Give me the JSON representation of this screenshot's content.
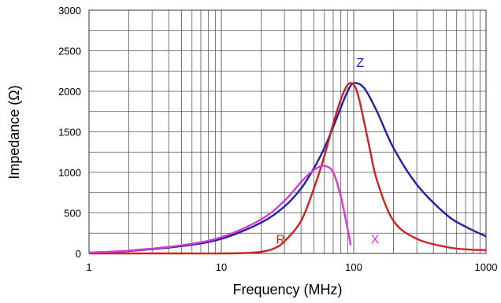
{
  "chart_data": {
    "type": "line",
    "xlabel": "Frequency (MHz)",
    "ylabel": "Impedance (Ω)",
    "x_scale": "log",
    "xlim": [
      1,
      1000
    ],
    "ylim": [
      0,
      3000
    ],
    "x_ticks": [
      1,
      10,
      100,
      1000
    ],
    "x_tick_labels": [
      "1",
      "10",
      "100",
      "1000"
    ],
    "y_ticks": [
      0,
      500,
      1000,
      1500,
      2000,
      2500,
      3000
    ],
    "y_tick_labels": [
      "0",
      "500",
      "1000",
      "1500",
      "2000",
      "2500",
      "3000"
    ],
    "grid": true,
    "series": [
      {
        "name": "Z",
        "color": "#1f1fa8",
        "x": [
          1,
          2,
          5,
          10,
          20,
          30,
          40,
          50,
          60,
          70,
          80,
          90,
          100,
          120,
          150,
          200,
          300,
          500,
          700,
          1000
        ],
        "y": [
          10,
          30,
          90,
          180,
          380,
          580,
          800,
          1050,
          1300,
          1560,
          1800,
          2000,
          2100,
          2040,
          1750,
          1300,
          850,
          480,
          330,
          210
        ]
      },
      {
        "name": "R",
        "color": "#cc2222",
        "x": [
          1,
          5,
          10,
          15,
          20,
          25,
          30,
          40,
          50,
          60,
          70,
          80,
          90,
          100,
          110,
          130,
          150,
          200,
          300,
          500,
          700,
          1000
        ],
        "y": [
          0,
          0,
          0,
          5,
          20,
          60,
          150,
          400,
          800,
          1200,
          1600,
          1900,
          2080,
          2080,
          1900,
          1350,
          900,
          400,
          180,
          80,
          50,
          40
        ]
      },
      {
        "name": "X",
        "color": "#d63bd6",
        "x": [
          1,
          2,
          5,
          10,
          20,
          30,
          40,
          50,
          60,
          70,
          80,
          90,
          95
        ],
        "y": [
          10,
          35,
          100,
          200,
          420,
          650,
          880,
          1030,
          1080,
          1000,
          700,
          300,
          100
        ]
      }
    ],
    "annotations": [
      {
        "text": "Z",
        "x": 112,
        "y": 2300,
        "color": "#1f1fa8"
      },
      {
        "text": "R",
        "x": 28,
        "y": 120,
        "color": "#cc2222"
      },
      {
        "text": "X",
        "x": 145,
        "y": 120,
        "color": "#d63bd6"
      }
    ],
    "colors": {
      "grid": "#555555",
      "frame": "#333333"
    }
  }
}
